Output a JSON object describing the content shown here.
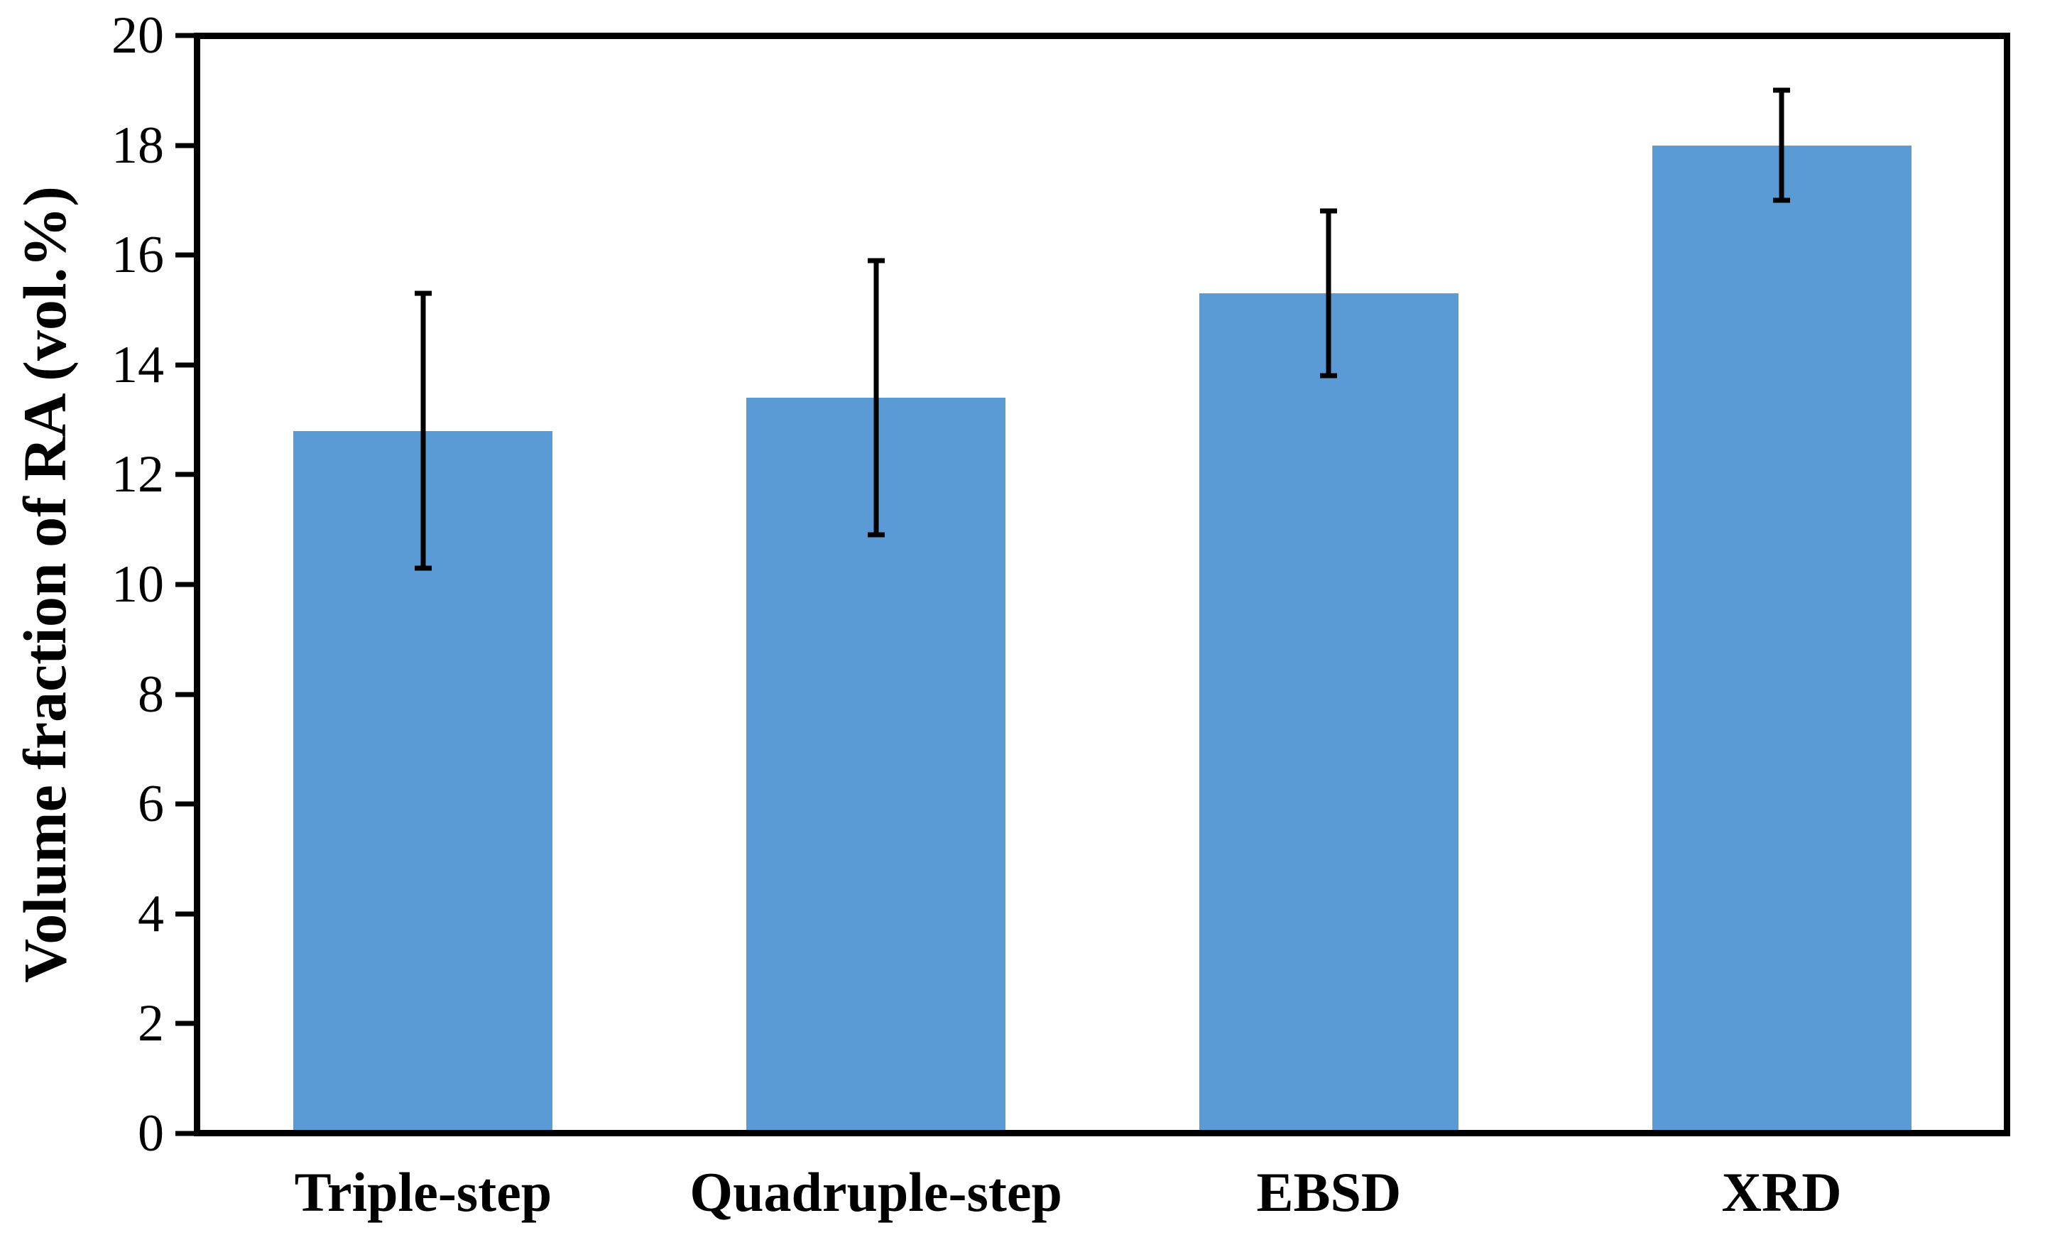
{
  "chart_data": {
    "type": "bar",
    "title": "",
    "categories": [
      "Triple-step",
      "Quadruple-step",
      "EBSD",
      "XRD"
    ],
    "values": [
      12.8,
      13.4,
      15.3,
      18.0
    ],
    "error_high": [
      15.3,
      15.9,
      16.8,
      19.0
    ],
    "error_low": [
      10.3,
      10.9,
      13.8,
      17.0
    ],
    "error_plus_minus": [
      2.5,
      2.5,
      1.5,
      1.0
    ],
    "xlabel": "",
    "ylabel": "Volume fraction of RA (vol.%)",
    "ylim": [
      0,
      20
    ],
    "ytick_step": 2,
    "yticks": [
      0,
      2,
      4,
      6,
      8,
      10,
      12,
      14,
      16,
      18,
      20
    ],
    "grid": false,
    "legend": "none",
    "bar_color": "#5B9BD5",
    "axis_color": "#000000",
    "bar_width_fraction_of_category": 0.572
  }
}
